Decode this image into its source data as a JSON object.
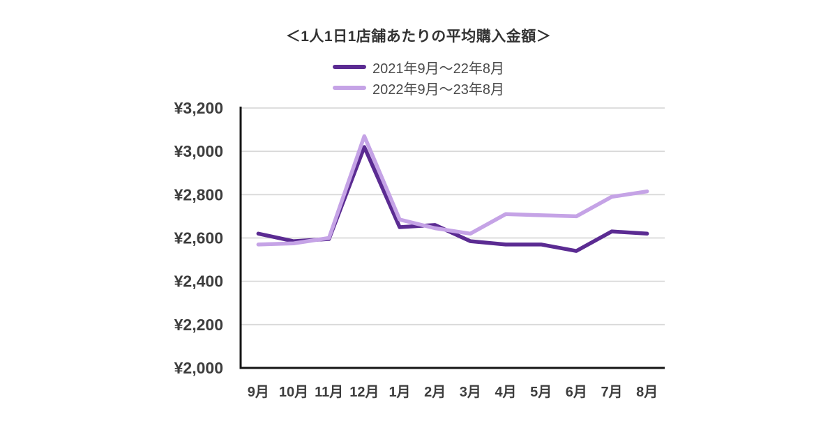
{
  "title": "＜1人1日1店舗あたりの平均購入金額＞",
  "chart_data": {
    "type": "line",
    "title": "＜1人1日1店舗あたりの平均購入金額＞",
    "categories": [
      "9月",
      "10月",
      "11月",
      "12月",
      "1月",
      "2月",
      "3月",
      "4月",
      "5月",
      "6月",
      "7月",
      "8月"
    ],
    "series": [
      {
        "name": "2021年9月〜22年8月",
        "color": "#5b2b92",
        "values": [
          2620,
          2585,
          2595,
          3020,
          2650,
          2660,
          2585,
          2570,
          2570,
          2540,
          2630,
          2620
        ]
      },
      {
        "name": "2022年9月〜23年8月",
        "color": "#c5a3e6",
        "values": [
          2570,
          2575,
          2600,
          3070,
          2685,
          2645,
          2620,
          2710,
          2705,
          2700,
          2790,
          2815
        ]
      }
    ],
    "y_axis": {
      "min": 2000,
      "max": 3200,
      "step": 200,
      "tick_labels": [
        "¥2,000",
        "¥2,200",
        "¥2,400",
        "¥2,600",
        "¥2,800",
        "¥3,000",
        "¥3,200"
      ],
      "currency_prefix": "¥"
    },
    "x_axis_label": "",
    "y_axis_label": "",
    "grid": true,
    "legend_position": "top",
    "colors": {
      "grid_line": "#d9d9d9",
      "axis_line": "#141414",
      "tick_text": "#3d3d3d",
      "title_text": "#333333",
      "legend_text": "#4a4a4a",
      "background": "#ffffff"
    }
  }
}
